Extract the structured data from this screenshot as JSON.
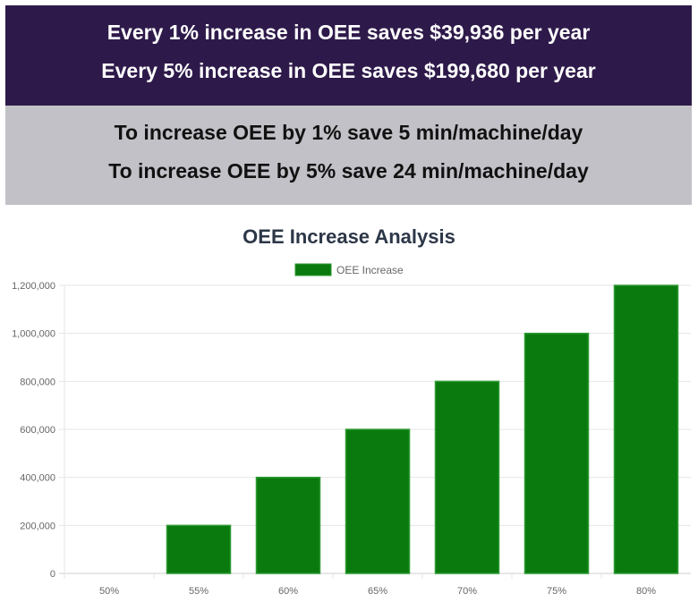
{
  "banners": {
    "savings": {
      "line1": "Every 1% increase in OEE saves $39,936 per year",
      "line2": "Every 5% increase in OEE saves $199,680 per year"
    },
    "time": {
      "line1": "To increase OEE by 1% save 5 min/machine/day",
      "line2": "To increase OEE by 5% save 24 min/machine/day"
    }
  },
  "colors": {
    "savings_banner_bg": "#2e1a4a",
    "time_banner_bg": "#c2c1c7",
    "bar_fill": "#0a7a0e",
    "bar_stroke": "#2e9a32",
    "title": "#2d3748"
  },
  "chart_data": {
    "type": "bar",
    "title": "OEE Increase Analysis",
    "legend": {
      "position": "top",
      "label": "OEE Increase"
    },
    "categories": [
      "50%",
      "55%",
      "60%",
      "65%",
      "70%",
      "75%",
      "80%"
    ],
    "series": [
      {
        "name": "OEE Increase",
        "values": [
          0,
          200000,
          400000,
          600000,
          800000,
          1000000,
          1200000
        ]
      }
    ],
    "yticks": [
      "0",
      "200,000",
      "400,000",
      "600,000",
      "800,000",
      "1,000,000",
      "1,200,000"
    ],
    "ylim": [
      0,
      1200000
    ],
    "grid": true,
    "xlabel": "",
    "ylabel": ""
  }
}
